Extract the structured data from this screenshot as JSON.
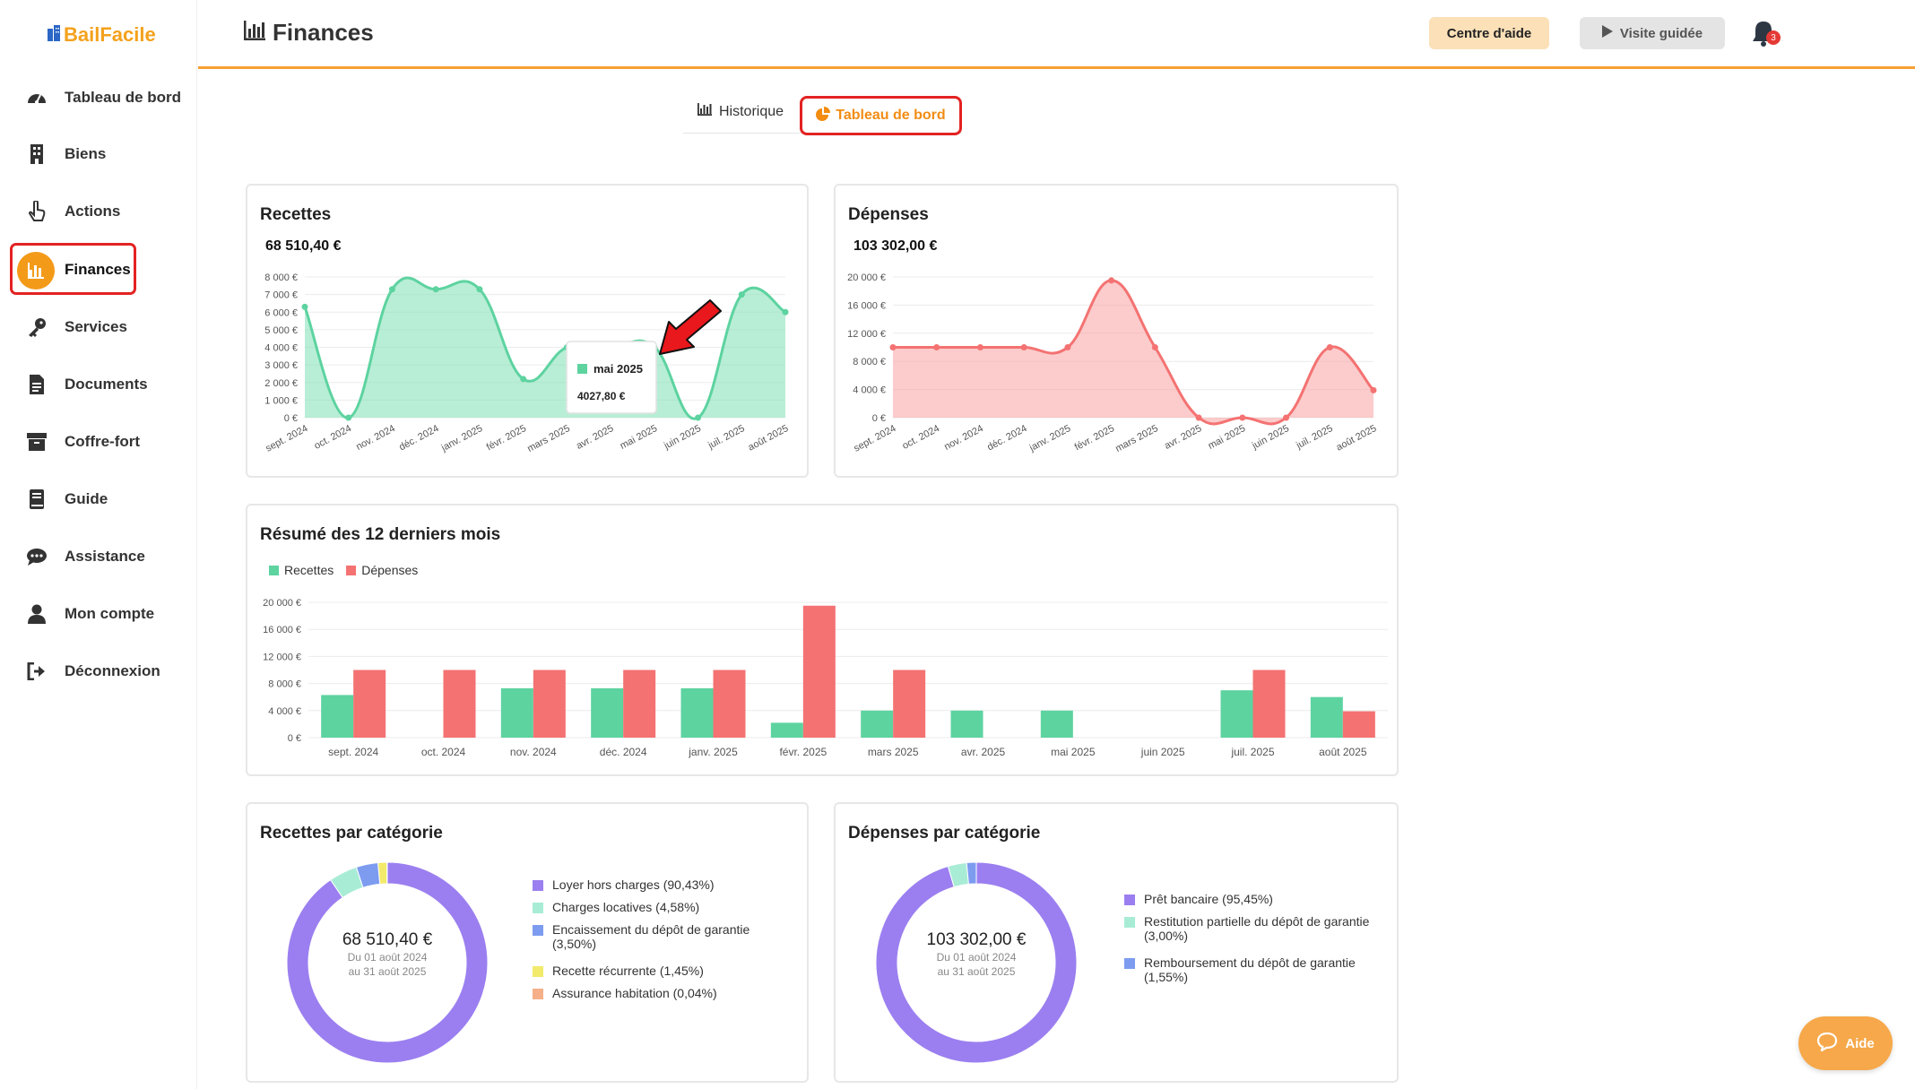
{
  "sidebar": {
    "brand": "BailFacile",
    "items": [
      {
        "label": "Tableau de bord",
        "icon": "dashboard-gauge-icon"
      },
      {
        "label": "Biens",
        "icon": "building-icon"
      },
      {
        "label": "Actions",
        "icon": "hand-pointer-icon"
      },
      {
        "label": "Finances",
        "icon": "bar-chart-icon",
        "active": true
      },
      {
        "label": "Services",
        "icon": "key-icon"
      },
      {
        "label": "Documents",
        "icon": "document-icon"
      },
      {
        "label": "Coffre-fort",
        "icon": "archive-box-icon"
      },
      {
        "label": "Guide",
        "icon": "book-icon"
      },
      {
        "label": "Assistance",
        "icon": "chat-bubble-icon"
      },
      {
        "label": "Mon compte",
        "icon": "user-icon"
      },
      {
        "label": "Déconnexion",
        "icon": "logout-icon"
      }
    ]
  },
  "header": {
    "title": "Finances",
    "help_center": "Centre d'aide",
    "guided_tour": "Visite guidée",
    "notification_count": "3"
  },
  "tabs": {
    "history": "Historique",
    "dashboard": "Tableau de bord"
  },
  "colors": {
    "accent": "#f39a18",
    "income": "#5dd3a0",
    "expense": "#f47272",
    "highlight": "#e32222"
  },
  "income_card": {
    "title": "Recettes",
    "total": "68 510,40 €",
    "tooltip_month": "mai 2025",
    "tooltip_value": "4027,80 €"
  },
  "expense_card": {
    "title": "Dépenses",
    "total": "103 302,00 €"
  },
  "summary_card": {
    "title": "Résumé des 12 derniers mois",
    "legend_income": "Recettes",
    "legend_expense": "Dépenses"
  },
  "income_categories": {
    "title": "Recettes par catégorie",
    "center_amount": "68 510,40 €",
    "center_line1": "Du 01 août 2024",
    "center_line2": "au 31 août 2025",
    "legend": [
      {
        "label": "Loyer hors charges (90,43%)",
        "color": "#9b7ff0"
      },
      {
        "label": "Charges locatives (4,58%)",
        "color": "#a8ecd6"
      },
      {
        "label": "Encaissement du dépôt de garantie (3,50%)",
        "color": "#7d9cf0"
      },
      {
        "label": "Recette récurrente (1,45%)",
        "color": "#f2ea6b"
      },
      {
        "label": "Assurance habitation (0,04%)",
        "color": "#f5b08a"
      }
    ]
  },
  "expense_categories": {
    "title": "Dépenses par catégorie",
    "center_amount": "103 302,00 €",
    "center_line1": "Du 01 août 2024",
    "center_line2": "au 31 août 2025",
    "legend": [
      {
        "label": "Prêt bancaire (95,45%)",
        "color": "#9b7ff0"
      },
      {
        "label": "Restitution partielle du dépôt de garantie (3,00%)",
        "color": "#a8ecd6"
      },
      {
        "label": "Remboursement du dépôt de garantie (1,55%)",
        "color": "#7d9cf0"
      }
    ]
  },
  "help_bubble": "Aide",
  "chart_data": [
    {
      "type": "area",
      "title": "Recettes",
      "categories": [
        "sept. 2024",
        "oct. 2024",
        "nov. 2024",
        "déc. 2024",
        "janv. 2025",
        "févr. 2025",
        "mars 2025",
        "avr. 2025",
        "mai 2025",
        "juin 2025",
        "juil. 2025",
        "août 2025"
      ],
      "values": [
        6300,
        0,
        7300,
        7300,
        7300,
        2200,
        4000,
        4000,
        4027.8,
        0,
        7000,
        6000
      ],
      "yticks": [
        "0 €",
        "1 000 €",
        "2 000 €",
        "3 000 €",
        "4 000 €",
        "5 000 €",
        "6 000 €",
        "7 000 €",
        "8 000 €"
      ],
      "ylim": [
        0,
        8000
      ],
      "color": "#5dd3a0"
    },
    {
      "type": "area",
      "title": "Dépenses",
      "categories": [
        "sept. 2024",
        "oct. 2024",
        "nov. 2024",
        "déc. 2024",
        "janv. 2025",
        "févr. 2025",
        "mars 2025",
        "avr. 2025",
        "mai 2025",
        "juin 2025",
        "juil. 2025",
        "août 2025"
      ],
      "values": [
        10000,
        10000,
        10000,
        10000,
        10000,
        19500,
        10000,
        0,
        0,
        0,
        10000,
        3900
      ],
      "yticks": [
        "0 €",
        "4 000 €",
        "8 000 €",
        "12 000 €",
        "16 000 €",
        "20 000 €"
      ],
      "ylim": [
        0,
        20000
      ],
      "color": "#f47272"
    },
    {
      "type": "bar",
      "title": "Résumé des 12 derniers mois",
      "categories": [
        "sept. 2024",
        "oct. 2024",
        "nov. 2024",
        "déc. 2024",
        "janv. 2025",
        "févr. 2025",
        "mars 2025",
        "avr. 2025",
        "mai 2025",
        "juin 2025",
        "juil. 2025",
        "août 2025"
      ],
      "series": [
        {
          "name": "Recettes",
          "values": [
            6300,
            0,
            7300,
            7300,
            7300,
            2200,
            4000,
            4000,
            4000,
            0,
            7000,
            6000
          ],
          "color": "#5dd3a0"
        },
        {
          "name": "Dépenses",
          "values": [
            10000,
            10000,
            10000,
            10000,
            10000,
            19500,
            10000,
            0,
            0,
            0,
            10000,
            3900
          ],
          "color": "#f47272"
        }
      ],
      "yticks": [
        "0 €",
        "4 000 €",
        "8 000 €",
        "12 000 €",
        "16 000 €",
        "20 000 €"
      ],
      "ylim": [
        0,
        20000
      ]
    },
    {
      "type": "pie",
      "title": "Recettes par catégorie",
      "labels": [
        "Loyer hors charges",
        "Charges locatives",
        "Encaissement du dépôt de garantie",
        "Recette récurrente",
        "Assurance habitation"
      ],
      "values": [
        90.43,
        4.58,
        3.5,
        1.45,
        0.04
      ],
      "colors": [
        "#9b7ff0",
        "#a8ecd6",
        "#7d9cf0",
        "#f2ea6b",
        "#f5b08a"
      ]
    },
    {
      "type": "pie",
      "title": "Dépenses par catégorie",
      "labels": [
        "Prêt bancaire",
        "Restitution partielle du dépôt de garantie",
        "Remboursement du dépôt de garantie"
      ],
      "values": [
        95.45,
        3.0,
        1.55
      ],
      "colors": [
        "#9b7ff0",
        "#a8ecd6",
        "#7d9cf0"
      ]
    }
  ]
}
